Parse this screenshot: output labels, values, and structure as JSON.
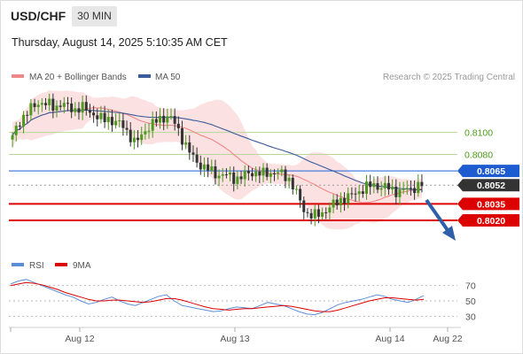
{
  "header": {
    "symbol": "USD/CHF",
    "timeframe": "30 MIN",
    "timestamp": "Thursday, August 14, 2025 5:10:35 AM CET"
  },
  "legend": {
    "ma20_bb_label": "MA 20 + Bollinger Bands",
    "ma50_label": "MA 50",
    "credit": "Research © 2025 Trading Central",
    "ma20_color": "#ee8888",
    "ma50_color": "#3b5b9a"
  },
  "rsi_legend": {
    "rsi_label": "RSI",
    "ma9_label": "9MA",
    "rsi_color": "#5b8ed6",
    "ma9_color": "#dd0000"
  },
  "chart_data": {
    "type": "candlestick",
    "price_range": [
      0.7995,
      0.814
    ],
    "price_ticks": [
      "0.8100",
      "0.8080"
    ],
    "levels": [
      {
        "label": "0.8065",
        "value": 0.8065,
        "color": "#4a7fe0",
        "badge": "#1d5bd0"
      },
      {
        "label": "0.8052",
        "value": 0.8052,
        "color": "#999999",
        "badge": "#333333"
      },
      {
        "label": "0.8035",
        "value": 0.8035,
        "color": "#dd0000",
        "badge": "#dd0000"
      },
      {
        "label": "0.8020",
        "value": 0.802,
        "color": "#dd0000",
        "badge": "#dd0000"
      }
    ],
    "x_ticks": [
      "Aug 12",
      "Aug 13",
      "Aug 14",
      "Aug 22"
    ],
    "candle_count": 112,
    "close_path": [
      0.8095,
      0.8108,
      0.8114,
      0.8119,
      0.8124,
      0.8128,
      0.8126,
      0.8125,
      0.8123,
      0.8126,
      0.8124,
      0.8122,
      0.8121,
      0.8123,
      0.812,
      0.8118,
      0.8114,
      0.8111,
      0.8113,
      0.811,
      0.8108,
      0.8105,
      0.8098,
      0.809,
      0.8095,
      0.8103,
      0.8106,
      0.811,
      0.8113,
      0.8115,
      0.8112,
      0.8104,
      0.8094,
      0.8084,
      0.8077,
      0.8072,
      0.8068,
      0.8066,
      0.8063,
      0.8061,
      0.8061,
      0.806,
      0.8058,
      0.8059,
      0.8062,
      0.8064,
      0.8063,
      0.8062,
      0.8063,
      0.8064,
      0.8063,
      0.8061,
      0.8058,
      0.8049,
      0.8038,
      0.8028,
      0.8025,
      0.8024,
      0.8026,
      0.803,
      0.8033,
      0.8036,
      0.804,
      0.8041,
      0.8043,
      0.8046,
      0.8049,
      0.8051,
      0.8052,
      0.8051,
      0.805,
      0.8049,
      0.8047,
      0.8046,
      0.8048,
      0.8049,
      0.8051,
      0.8052
    ],
    "rsi": {
      "levels": [
        70,
        50,
        30
      ],
      "range": [
        20,
        80
      ],
      "rsi_values": [
        72,
        76,
        78,
        74,
        70,
        66,
        62,
        58,
        55,
        50,
        46,
        48,
        52,
        55,
        50,
        46,
        44,
        48,
        52,
        56,
        58,
        50,
        44,
        42,
        40,
        38,
        36,
        37,
        40,
        42,
        41,
        40,
        44,
        48,
        46,
        44,
        40,
        36,
        33,
        32,
        35,
        40,
        45,
        48,
        50,
        52,
        55,
        58,
        56,
        52,
        50,
        48,
        52,
        57
      ],
      "ma9_values": [
        70,
        72,
        74,
        73,
        71,
        68,
        65,
        61,
        58,
        55,
        52,
        50,
        50,
        51,
        51,
        50,
        49,
        48,
        49,
        51,
        53,
        53,
        51,
        48,
        45,
        42,
        40,
        39,
        38,
        39,
        40,
        40,
        41,
        42,
        43,
        44,
        43,
        41,
        39,
        37,
        36,
        36,
        38,
        41,
        44,
        47,
        50,
        52,
        54,
        54,
        53,
        52,
        51,
        52
      ]
    }
  }
}
